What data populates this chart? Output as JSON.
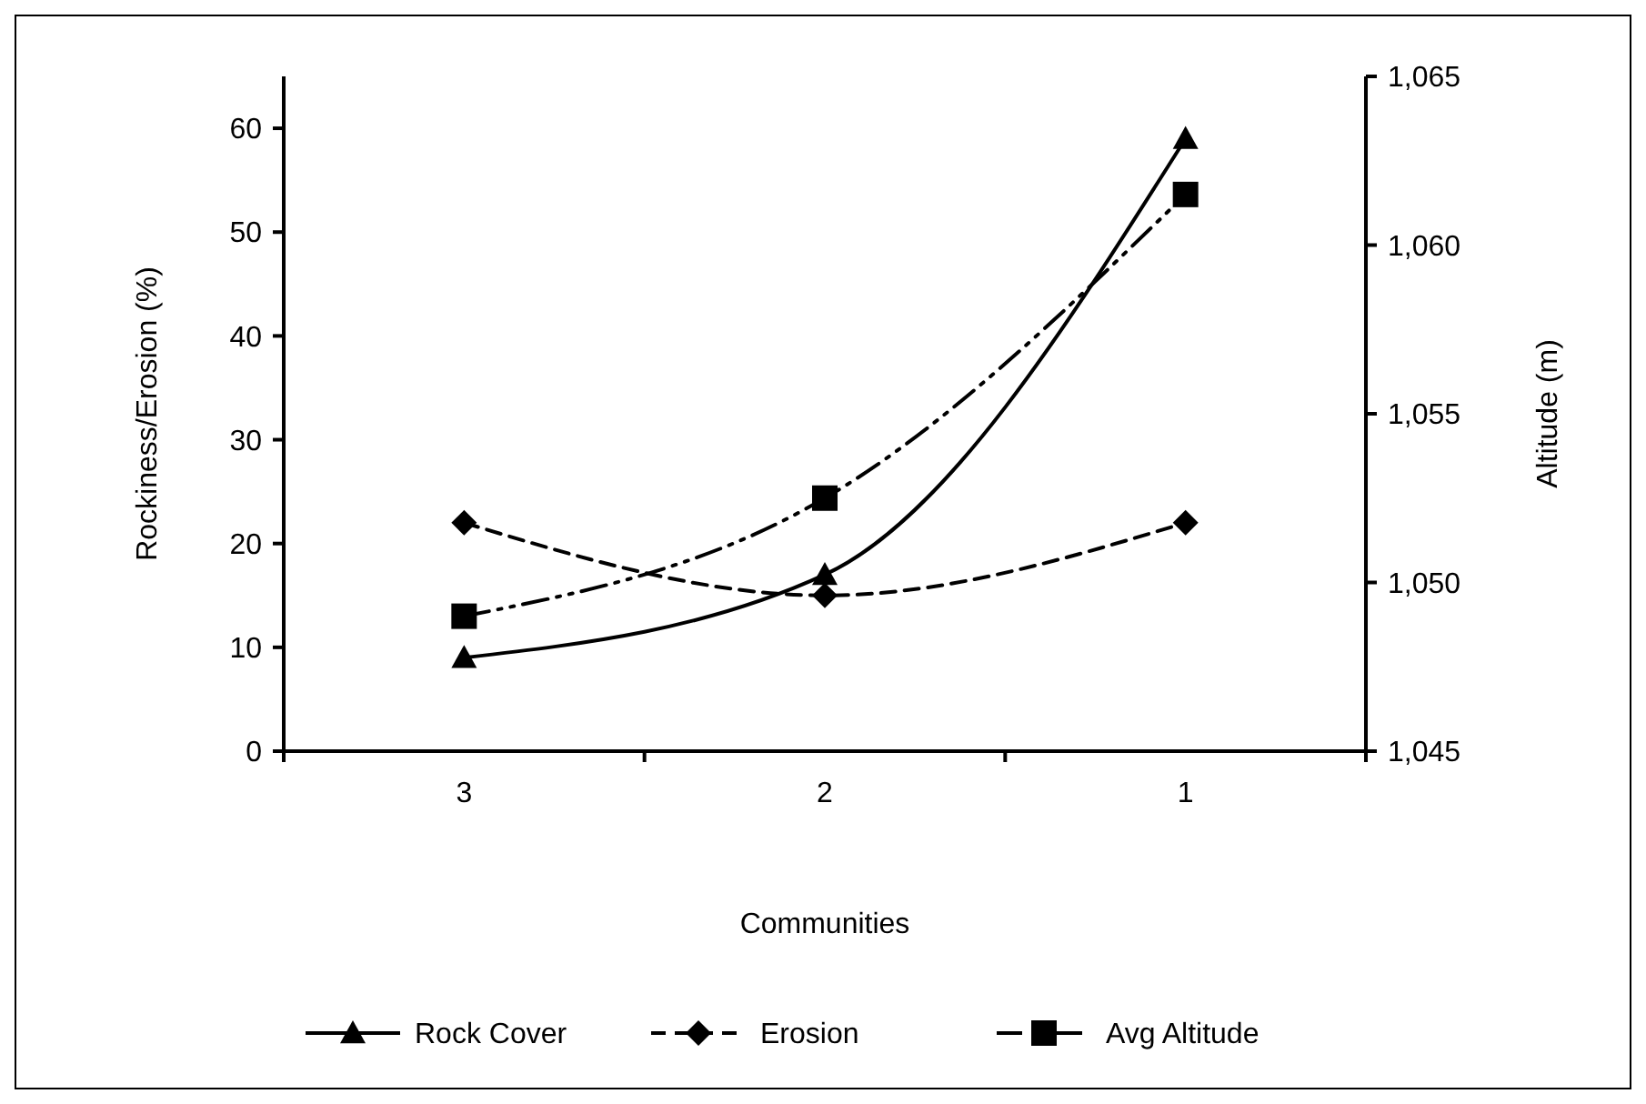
{
  "chart_data": {
    "type": "line",
    "xlabel": "Communities",
    "ylabel": "Rockiness/Erosion (%)",
    "y2label": "Altitude (m)",
    "categories": [
      "3",
      "2",
      "1"
    ],
    "ylim": [
      0,
      65
    ],
    "yticks": [
      0,
      10,
      20,
      30,
      40,
      50,
      60
    ],
    "y2lim": [
      1045,
      1065
    ],
    "y2ticks": [
      {
        "value": 1045,
        "label": "1,045"
      },
      {
        "value": 1050,
        "label": "1,050"
      },
      {
        "value": 1055,
        "label": "1,055"
      },
      {
        "value": 1060,
        "label": "1,060"
      },
      {
        "value": 1065,
        "label": "1,065"
      }
    ],
    "series": [
      {
        "name": "Rock Cover",
        "color": "#000000",
        "values": [
          9,
          17,
          59
        ],
        "marker": "triangle",
        "line_style": "solid"
      },
      {
        "name": "Erosion",
        "color": "#000000",
        "values": [
          22,
          15,
          22
        ],
        "marker": "diamond",
        "line_style": "dashed"
      },
      {
        "name": "Avg Altitude",
        "color": "#000000",
        "values": [
          1049,
          1052.5,
          1061.5
        ],
        "marker": "square",
        "line_style": "dotted",
        "axis": "y2"
      }
    ],
    "grid": false,
    "legend": "bottom"
  }
}
